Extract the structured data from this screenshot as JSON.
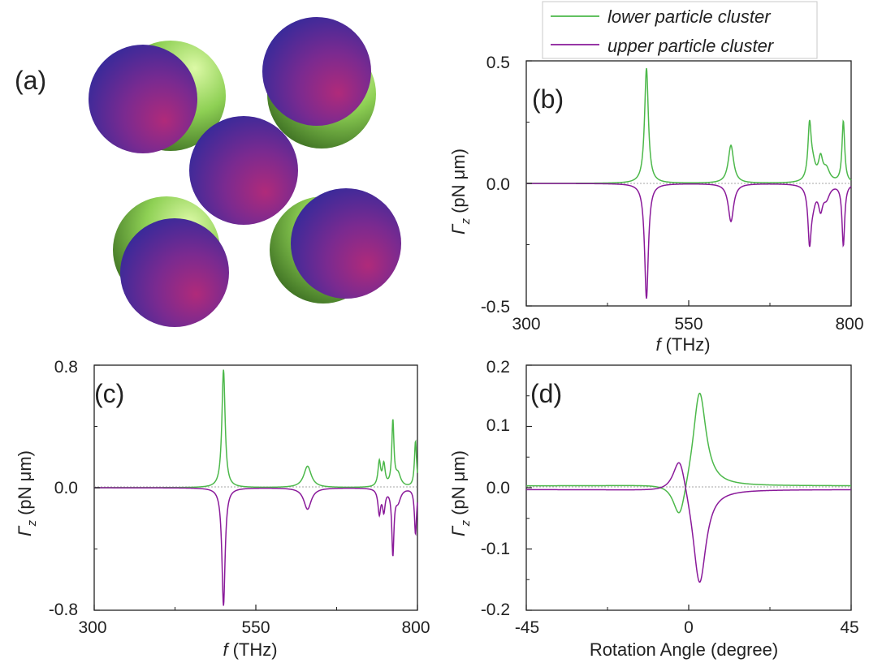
{
  "panel_a": {
    "label": "(a)",
    "colors": {
      "purple_sphere_center": "#8a2a90",
      "purple_sphere_edge": "#3a2a9a",
      "green_sphere_light": "#c8f08a",
      "green_sphere_dark": "#3f7a22"
    }
  },
  "legend": {
    "position": "top-right, above panel (b)",
    "entries": [
      {
        "label": "lower particle cluster",
        "color": "#4cb84a"
      },
      {
        "label": "upper particle cluster",
        "color": "#8a1a9a"
      }
    ]
  },
  "chart_data": [
    {
      "id": "b",
      "type": "line",
      "panel_label": "(b)",
      "xlabel_symbol": "f",
      "xlabel_unit": "(THz)",
      "ylabel_symbol": "Γ",
      "ylabel_sub": "z",
      "ylabel_unit": "(pN μm)",
      "xlim": [
        300,
        800
      ],
      "ylim": [
        -0.5,
        0.5
      ],
      "xticks": [
        300,
        550,
        800
      ],
      "xtick_labels": [
        "300",
        "550",
        "800"
      ],
      "yticks": [
        -0.5,
        0.0,
        0.5
      ],
      "ytick_labels": [
        "-0.5",
        "0.0",
        "0.5"
      ],
      "zero_line": true,
      "peaks": [
        {
          "x": 485,
          "y": 0.47,
          "width": 3.5
        },
        {
          "x": 615,
          "y": 0.155,
          "width": 5
        },
        {
          "x": 736,
          "y": 0.22,
          "width": 3
        },
        {
          "x": 741,
          "y": 0.06,
          "width": 5
        },
        {
          "x": 753,
          "y": 0.09,
          "width": 4
        },
        {
          "x": 762,
          "y": 0.05,
          "width": 6
        },
        {
          "x": 788,
          "y": 0.25,
          "width": 2.5
        }
      ],
      "series": [
        {
          "name": "lower particle cluster",
          "color": "#4cb84a",
          "sign": 1
        },
        {
          "name": "upper particle cluster",
          "color": "#8a1a9a",
          "sign": -1
        }
      ]
    },
    {
      "id": "c",
      "type": "line",
      "panel_label": "(c)",
      "xlabel_symbol": "f",
      "xlabel_unit": "(THz)",
      "ylabel_symbol": "Γ",
      "ylabel_sub": "z",
      "ylabel_unit": "(pN μm)",
      "xlim": [
        300,
        800
      ],
      "ylim": [
        -0.8,
        0.8
      ],
      "xticks": [
        300,
        550,
        800
      ],
      "xtick_labels": [
        "300",
        "550",
        "800"
      ],
      "yticks": [
        -0.8,
        0.0,
        0.8
      ],
      "ytick_labels": [
        "-0.8",
        "0.0",
        "0.8"
      ],
      "zero_line": true,
      "peaks": [
        {
          "x": 500,
          "y": 0.77,
          "width": 3
        },
        {
          "x": 630,
          "y": 0.14,
          "width": 7
        },
        {
          "x": 741,
          "y": 0.16,
          "width": 2.5
        },
        {
          "x": 748,
          "y": 0.14,
          "width": 2.5
        },
        {
          "x": 762,
          "y": 0.42,
          "width": 2
        },
        {
          "x": 770,
          "y": 0.08,
          "width": 5
        },
        {
          "x": 797,
          "y": 0.3,
          "width": 2
        }
      ],
      "series": [
        {
          "name": "lower particle cluster",
          "color": "#4cb84a",
          "sign": 1
        },
        {
          "name": "upper particle cluster",
          "color": "#8a1a9a",
          "sign": -1
        }
      ]
    },
    {
      "id": "d",
      "type": "line",
      "panel_label": "(d)",
      "xlabel": "Rotation Angle (degree)",
      "ylabel_symbol": "Γ",
      "ylabel_sub": "z",
      "ylabel_unit": "(pN μm)",
      "xlim": [
        -45,
        45
      ],
      "ylim": [
        -0.2,
        0.2
      ],
      "xticks": [
        -45,
        0,
        45
      ],
      "xtick_labels": [
        "-45",
        "0",
        "45"
      ],
      "yticks": [
        -0.2,
        -0.1,
        0.0,
        0.1,
        0.2
      ],
      "ytick_labels": [
        "-0.2",
        "-0.1",
        "0.0",
        "0.1",
        "0.2"
      ],
      "zero_line": true,
      "features": [
        {
          "x": -2.5,
          "y": -0.065,
          "width": 2.2
        },
        {
          "x": 3,
          "y": 0.16,
          "width": 2.2
        }
      ],
      "series": [
        {
          "name": "lower particle cluster",
          "color": "#4cb84a",
          "sign": 1,
          "tail": 0.003
        },
        {
          "name": "upper particle cluster",
          "color": "#8a1a9a",
          "sign": -1,
          "tail": -0.003
        }
      ]
    }
  ]
}
